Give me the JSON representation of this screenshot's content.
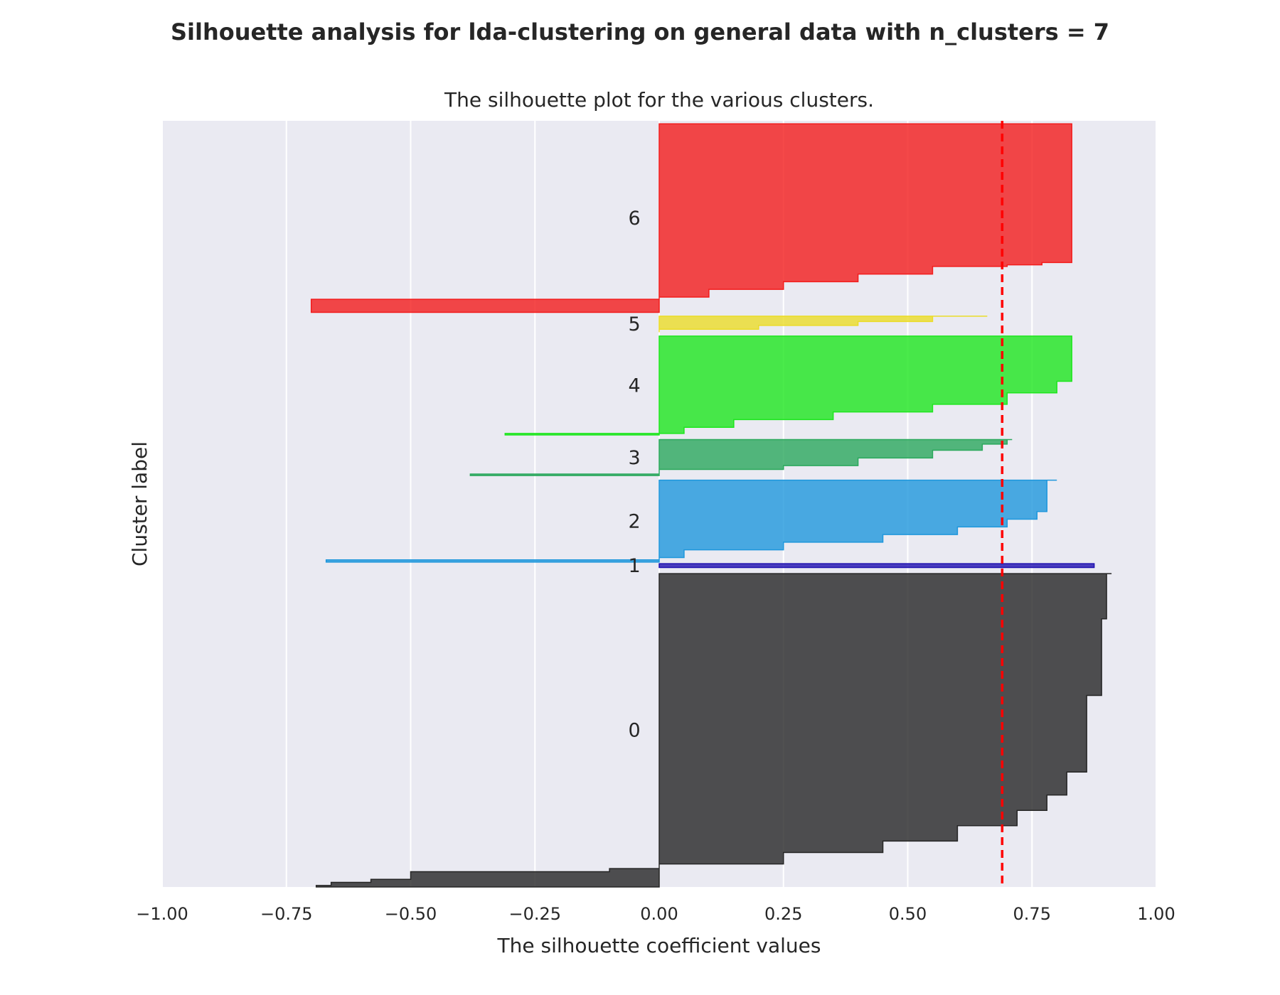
{
  "suptitle": "Silhouette analysis for lda-clustering on general data with n_clusters = 7",
  "chart_data": {
    "type": "area",
    "title": "The silhouette plot for the various clusters.",
    "xlabel": "The silhouette coefficient values",
    "ylabel": "Cluster label",
    "xlim": [
      -1.0,
      1.0
    ],
    "ylim": [
      0,
      1
    ],
    "xticks": [
      -1.0,
      -0.75,
      -0.5,
      -0.25,
      0.0,
      0.25,
      0.5,
      0.75,
      1.0
    ],
    "xtick_labels": [
      "−1.00",
      "−0.75",
      "−0.50",
      "−0.25",
      "0.00",
      "0.25",
      "0.50",
      "0.75",
      "1.00"
    ],
    "grid": true,
    "average_silhouette_score": 0.69,
    "series": [
      {
        "name": "0",
        "color": "#262626",
        "y_range": [
          0.0,
          0.409
        ],
        "profile": [
          [
            0.0,
            -0.69
          ],
          [
            0.002,
            -0.66
          ],
          [
            0.006,
            -0.58
          ],
          [
            0.01,
            -0.5
          ],
          [
            0.018,
            -0.5
          ],
          [
            0.02,
            -0.1
          ],
          [
            0.024,
            0.0
          ],
          [
            0.03,
            0.25
          ],
          [
            0.045,
            0.45
          ],
          [
            0.06,
            0.6
          ],
          [
            0.08,
            0.72
          ],
          [
            0.1,
            0.78
          ],
          [
            0.12,
            0.82
          ],
          [
            0.15,
            0.86
          ],
          [
            0.25,
            0.89
          ],
          [
            0.35,
            0.9
          ],
          [
            0.409,
            0.91
          ]
        ]
      },
      {
        "name": "1",
        "color": "#1f10b0",
        "y_range": [
          0.417,
          0.422
        ],
        "profile": [
          [
            0.417,
            0.875
          ],
          [
            0.422,
            0.875
          ]
        ]
      },
      {
        "name": "2",
        "color": "#1f97dc",
        "y_range": [
          0.424,
          0.531
        ],
        "profile": [
          [
            0.424,
            -0.67
          ],
          [
            0.427,
            0.0
          ],
          [
            0.43,
            0.05
          ],
          [
            0.44,
            0.25
          ],
          [
            0.45,
            0.45
          ],
          [
            0.46,
            0.6
          ],
          [
            0.47,
            0.7
          ],
          [
            0.48,
            0.76
          ],
          [
            0.49,
            0.78
          ],
          [
            0.531,
            0.8
          ]
        ]
      },
      {
        "name": "3",
        "color": "#2ba85c",
        "y_range": [
          0.537,
          0.584
        ],
        "profile": [
          [
            0.537,
            -0.38
          ],
          [
            0.539,
            0.0
          ],
          [
            0.545,
            0.25
          ],
          [
            0.55,
            0.4
          ],
          [
            0.56,
            0.55
          ],
          [
            0.57,
            0.65
          ],
          [
            0.578,
            0.7
          ],
          [
            0.584,
            0.71
          ]
        ]
      },
      {
        "name": "4",
        "color": "#1ee61e",
        "y_range": [
          0.59,
          0.719
        ],
        "profile": [
          [
            0.59,
            -0.31
          ],
          [
            0.592,
            0.05
          ],
          [
            0.6,
            0.15
          ],
          [
            0.61,
            0.35
          ],
          [
            0.62,
            0.55
          ],
          [
            0.63,
            0.7
          ],
          [
            0.645,
            0.8
          ],
          [
            0.66,
            0.83
          ],
          [
            0.719,
            0.83
          ]
        ]
      },
      {
        "name": "5",
        "color": "#ebdc28",
        "y_range": [
          0.724,
          0.745
        ],
        "profile": [
          [
            0.724,
            0.0
          ],
          [
            0.728,
            0.2
          ],
          [
            0.733,
            0.4
          ],
          [
            0.738,
            0.55
          ],
          [
            0.745,
            0.66
          ]
        ]
      },
      {
        "name": "6",
        "color": "#f21c1c",
        "y_range": [
          0.75,
          0.996
        ],
        "profile": [
          [
            0.75,
            -0.7
          ],
          [
            0.765,
            -0.7
          ],
          [
            0.767,
            0.0
          ],
          [
            0.77,
            0.1
          ],
          [
            0.78,
            0.25
          ],
          [
            0.79,
            0.4
          ],
          [
            0.8,
            0.55
          ],
          [
            0.81,
            0.7
          ],
          [
            0.812,
            0.77
          ],
          [
            0.815,
            0.83
          ],
          [
            0.996,
            0.83
          ]
        ]
      }
    ]
  }
}
